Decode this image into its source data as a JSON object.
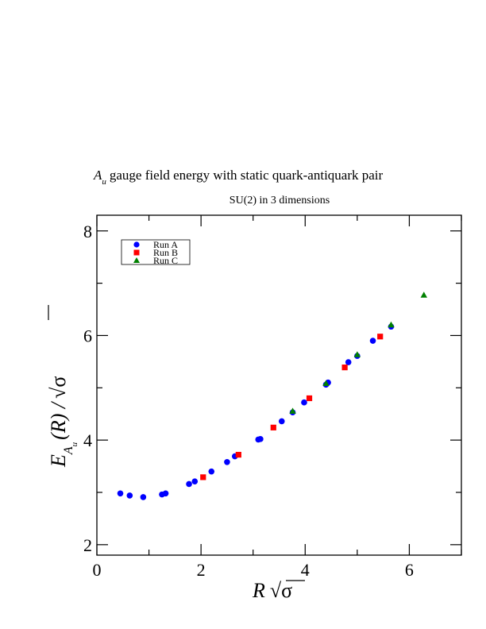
{
  "chart_data": {
    "type": "scatter",
    "title_prefix": "A",
    "title_sub": "u",
    "title_rest": "gauge field energy with static quark-antiquark pair",
    "subtitle": "SU(2) in 3 dimensions",
    "xlabel": {
      "var": "R",
      "sqrt_symbol": "√",
      "sigma": "σ"
    },
    "ylabel": {
      "E": "E",
      "sub_A": "A",
      "sub_u": "u",
      "mid": "(R) /",
      "sqrt_symbol": "√",
      "sigma": "σ"
    },
    "xlim": [
      0,
      7
    ],
    "ylim": [
      1.8,
      8.3
    ],
    "x_ticks": [
      0,
      2,
      4,
      6
    ],
    "x_tick_labels": [
      "0",
      "2",
      "4",
      "6"
    ],
    "y_ticks": [
      2,
      4,
      6,
      8
    ],
    "y_tick_labels": [
      "2",
      "4",
      "6",
      "8"
    ],
    "grid": false,
    "legend_position": "top-left",
    "series": [
      {
        "name": "Run A",
        "marker": "circle",
        "color": "#0000ff",
        "points": [
          [
            0.45,
            2.98
          ],
          [
            0.63,
            2.94
          ],
          [
            0.89,
            2.91
          ],
          [
            1.25,
            2.96
          ],
          [
            1.32,
            2.98
          ],
          [
            1.77,
            3.16
          ],
          [
            1.88,
            3.21
          ],
          [
            2.2,
            3.4
          ],
          [
            2.5,
            3.58
          ],
          [
            2.65,
            3.69
          ],
          [
            3.1,
            4.01
          ],
          [
            3.14,
            4.02
          ],
          [
            3.55,
            4.36
          ],
          [
            3.76,
            4.53
          ],
          [
            3.98,
            4.72
          ],
          [
            4.4,
            5.06
          ],
          [
            4.44,
            5.1
          ],
          [
            4.83,
            5.49
          ],
          [
            5.0,
            5.61
          ],
          [
            5.3,
            5.9
          ],
          [
            5.65,
            6.17
          ]
        ]
      },
      {
        "name": "Run B",
        "marker": "square",
        "color": "#ff0000",
        "points": [
          [
            2.04,
            3.29
          ],
          [
            2.72,
            3.72
          ],
          [
            3.39,
            4.24
          ],
          [
            4.08,
            4.8
          ],
          [
            4.76,
            5.39
          ],
          [
            5.44,
            5.98
          ]
        ]
      },
      {
        "name": "Run C",
        "marker": "triangle",
        "color": "#008000",
        "points": [
          [
            3.76,
            4.55
          ],
          [
            4.4,
            5.08
          ],
          [
            5.0,
            5.63
          ],
          [
            5.65,
            6.2
          ],
          [
            6.28,
            6.77
          ]
        ]
      }
    ]
  }
}
